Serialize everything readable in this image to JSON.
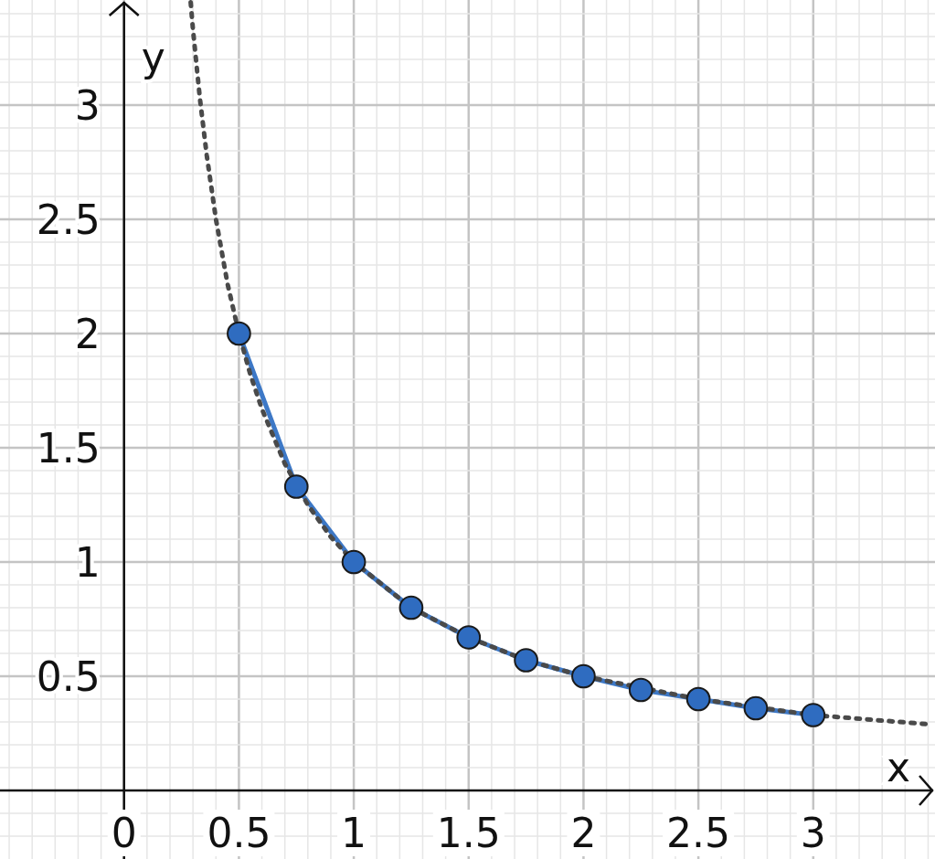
{
  "chart_data": {
    "type": "scatter",
    "xlabel": "x",
    "ylabel": "y",
    "xlim": [
      -0.54,
      3.53
    ],
    "ylim": [
      -0.3,
      3.46
    ],
    "xticks": [
      0,
      0.5,
      1,
      1.5,
      2,
      2.5,
      3,
      {
        "value": -0.5,
        "label": null
      },
      {
        "value": -0.4,
        "label": null
      },
      {
        "value": -0.3,
        "label": null
      },
      {
        "value": -0.2,
        "label": null
      },
      {
        "value": -0.1,
        "label": null
      },
      {
        "value": 0.1,
        "label": null
      },
      {
        "value": 0.2,
        "label": null
      },
      {
        "value": 0.3,
        "label": null
      },
      {
        "value": 0.4,
        "label": null
      },
      {
        "value": 0.6,
        "label": null
      },
      {
        "value": 0.7,
        "label": null
      },
      {
        "value": 0.8,
        "label": null
      },
      {
        "value": 0.9,
        "label": null
      },
      {
        "value": 1.1,
        "label": null
      },
      {
        "value": 1.2,
        "label": null
      },
      {
        "value": 1.3,
        "label": null
      },
      {
        "value": 1.4,
        "label": null
      },
      {
        "value": 1.6,
        "label": null
      },
      {
        "value": 1.7,
        "label": null
      },
      {
        "value": 1.8,
        "label": null
      },
      {
        "value": 1.9,
        "label": null
      },
      {
        "value": 2.1,
        "label": null
      },
      {
        "value": 2.2,
        "label": null
      },
      {
        "value": 2.3,
        "label": null
      },
      {
        "value": 2.4,
        "label": null
      },
      {
        "value": 2.6,
        "label": null
      },
      {
        "value": 2.7,
        "label": null
      },
      {
        "value": 2.8,
        "label": null
      },
      {
        "value": 2.9,
        "label": null
      },
      {
        "value": 3.1,
        "label": null
      },
      {
        "value": 3.2,
        "label": null
      },
      {
        "value": 3.3,
        "label": null
      },
      {
        "value": 3.4,
        "label": null
      },
      {
        "value": 3.5,
        "label": null
      }
    ],
    "yticks": [
      0.5,
      1,
      1.5,
      2,
      2.5,
      3,
      {
        "value": -0.2,
        "label": null
      },
      {
        "value": -0.1,
        "label": null
      },
      {
        "value": 0.1,
        "label": null
      },
      {
        "value": 0.2,
        "label": null
      },
      {
        "value": 0.3,
        "label": null
      },
      {
        "value": 0.4,
        "label": null
      },
      {
        "value": 0.6,
        "label": null
      },
      {
        "value": 0.7,
        "label": null
      },
      {
        "value": 0.8,
        "label": null
      },
      {
        "value": 0.9,
        "label": null
      },
      {
        "value": 1.1,
        "label": null
      },
      {
        "value": 1.2,
        "label": null
      },
      {
        "value": 1.3,
        "label": null
      },
      {
        "value": 1.4,
        "label": null
      },
      {
        "value": 1.6,
        "label": null
      },
      {
        "value": 1.7,
        "label": null
      },
      {
        "value": 1.8,
        "label": null
      },
      {
        "value": 1.9,
        "label": null
      },
      {
        "value": 2.1,
        "label": null
      },
      {
        "value": 2.2,
        "label": null
      },
      {
        "value": 2.3,
        "label": null
      },
      {
        "value": 2.4,
        "label": null
      },
      {
        "value": 2.6,
        "label": null
      },
      {
        "value": 2.7,
        "label": null
      },
      {
        "value": 2.8,
        "label": null
      },
      {
        "value": 2.9,
        "label": null
      },
      {
        "value": 3.1,
        "label": null
      },
      {
        "value": 3.2,
        "label": null
      },
      {
        "value": 3.3,
        "label": null
      },
      {
        "value": 3.4,
        "label": null
      }
    ],
    "grid": true,
    "series": [
      {
        "type": "line",
        "color": "#3d78c6",
        "line_style": "solid",
        "marker": "none",
        "x": [
          0.5,
          0.75,
          1,
          1.25,
          1.5,
          1.75,
          2,
          2.25,
          2.5,
          2.75,
          3
        ],
        "values": [
          2,
          1.33,
          1,
          0.8,
          0.67,
          0.57,
          0.5,
          0.44,
          0.4,
          0.36,
          0.33
        ]
      },
      {
        "type": "line",
        "color": "#4a4a4a",
        "line_style": "dotted",
        "marker": "none",
        "x": [
          0.29,
          0.3,
          0.33,
          0.36,
          0.4,
          0.45,
          0.5,
          0.55,
          0.6,
          0.7,
          0.8,
          0.9,
          1,
          1.25,
          1.5,
          1.75,
          2,
          2.5,
          3,
          3.5
        ],
        "values": [
          3.45,
          3.33,
          3.03,
          2.78,
          2.5,
          2.22,
          2,
          1.82,
          1.67,
          1.43,
          1.25,
          1.11,
          1,
          0.8,
          0.67,
          0.57,
          0.5,
          0.4,
          0.33,
          0.29
        ]
      },
      {
        "color": "#2f6cc0",
        "marker": "circle",
        "x": [
          0.5,
          0.75,
          1,
          1.25,
          1.5,
          1.75,
          2,
          2.25,
          2.5,
          2.75,
          3
        ],
        "values": [
          2,
          1.33,
          1,
          0.8,
          0.67,
          0.57,
          0.5,
          0.44,
          0.4,
          0.36,
          0.33
        ]
      }
    ]
  }
}
